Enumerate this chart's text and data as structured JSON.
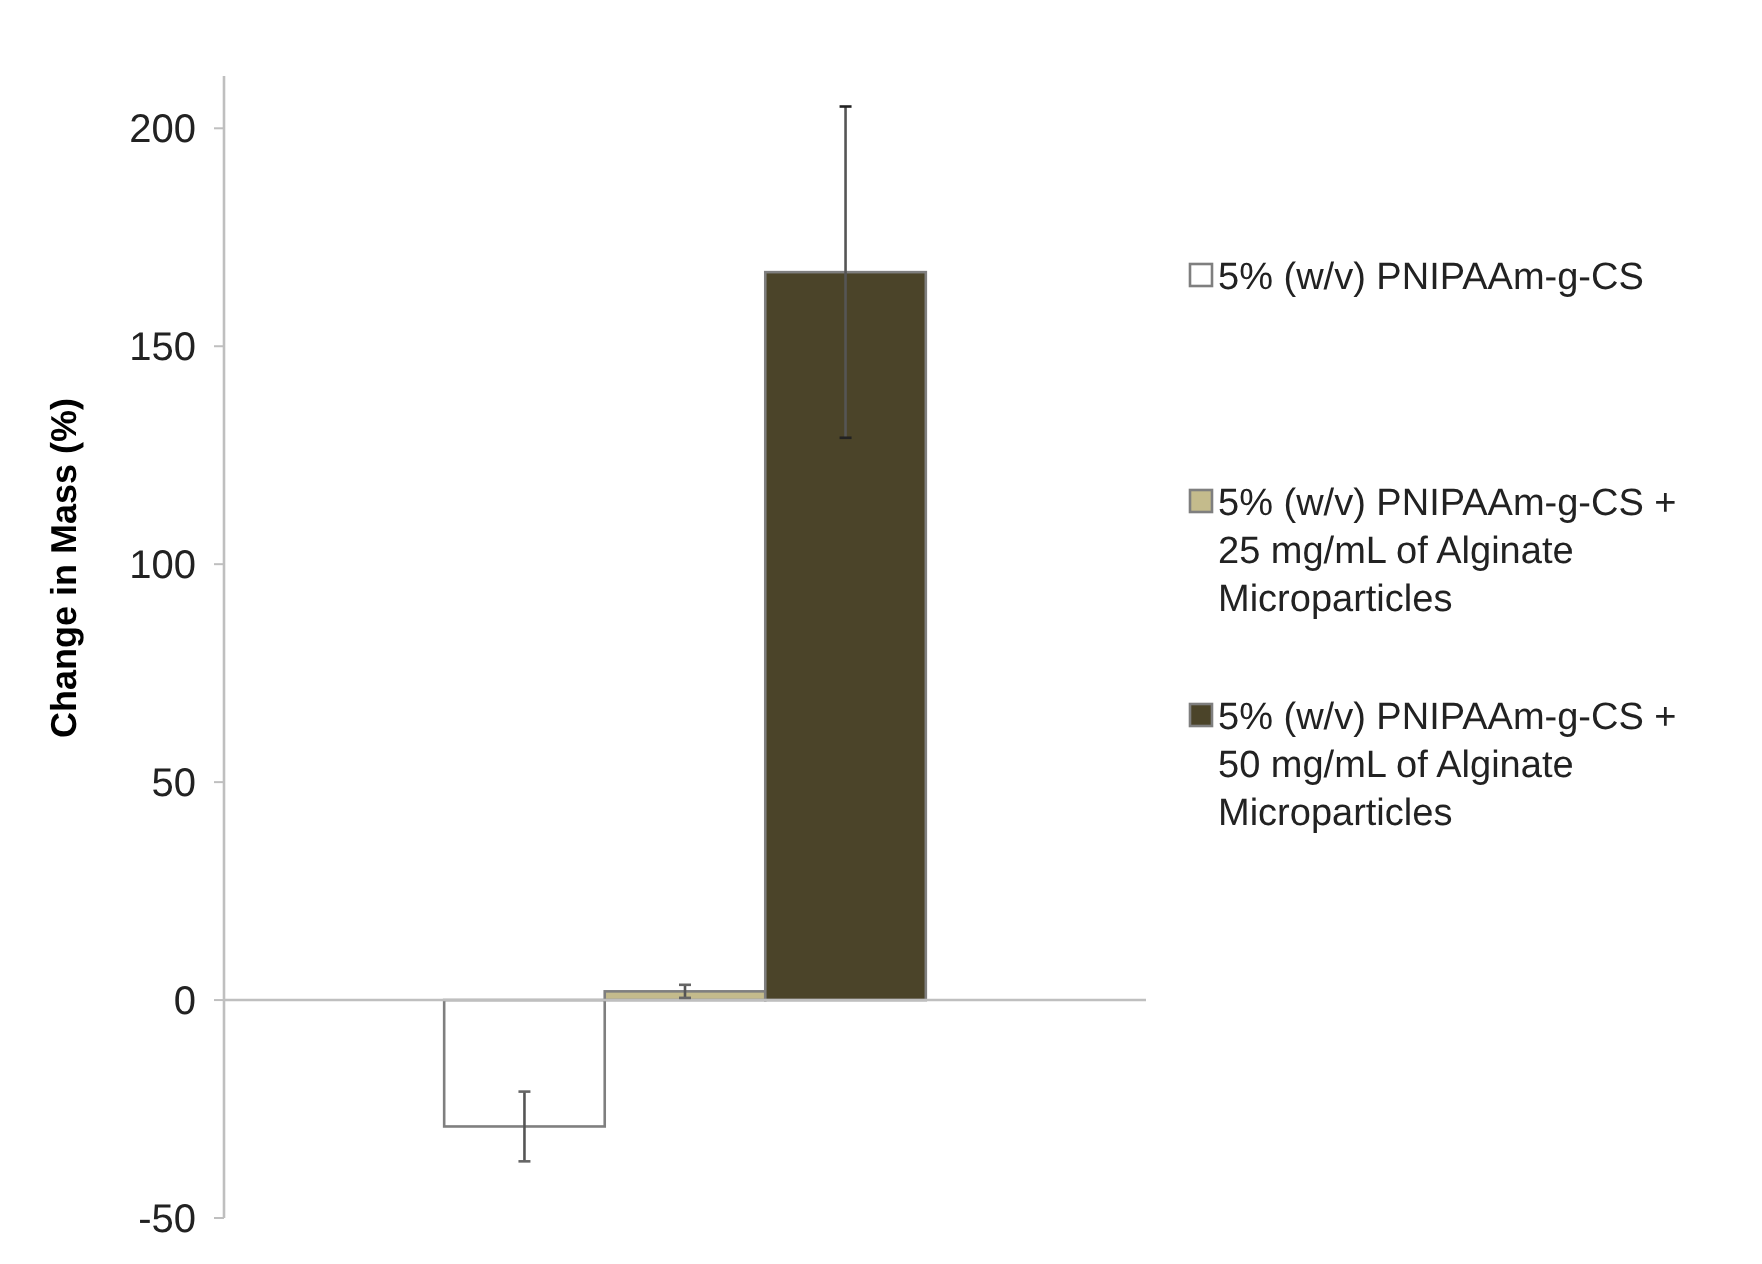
{
  "chart_data": {
    "type": "bar",
    "ylabel": "Change in Mass (%)",
    "categories": [
      null
    ],
    "series": [
      {
        "name": "5% (w/v) PNIPAAm-g-CS",
        "color": "#ffffff",
        "values": [
          -29
        ],
        "errors": [
          8
        ]
      },
      {
        "name": "5% (w/v) PNIPAAm-g-CS + 25 mg/mL of Alginate Microparticles",
        "color": "#c4bb8c",
        "values": [
          2
        ],
        "errors": [
          1.5
        ]
      },
      {
        "name": "5% (w/v) PNIPAAm-g-CS + 50 mg/mL of Alginate Microparticles",
        "color": "#4b4429",
        "values": [
          167
        ],
        "errors": [
          38
        ]
      }
    ],
    "ylim": [
      -50,
      212
    ],
    "yticks": [
      -50,
      0,
      50,
      100,
      150,
      200
    ],
    "legend": "right"
  }
}
